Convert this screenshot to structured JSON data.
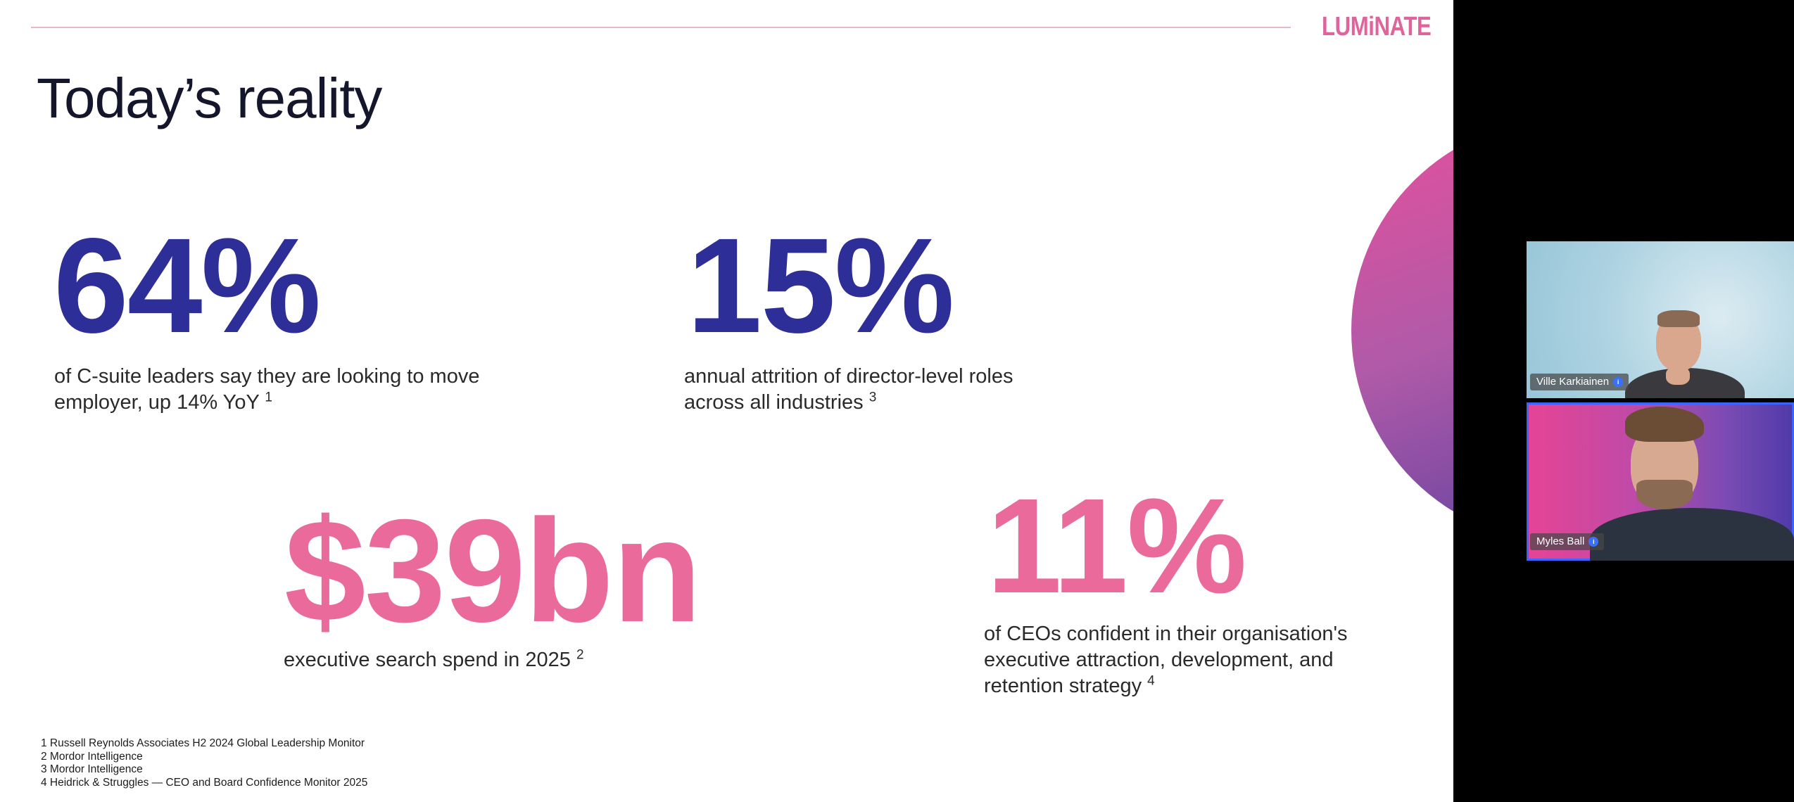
{
  "slide": {
    "logo": "LUMiNATE",
    "title": "Today’s reality",
    "stats": [
      {
        "value": "64%",
        "desc": "of C-suite leaders say they are looking to move employer, up 14% YoY",
        "ref": "1"
      },
      {
        "value": "15%",
        "desc": "annual attrition of director-level roles across all industries",
        "ref": "3"
      },
      {
        "value": "$39bn",
        "desc": "executive search spend in 2025",
        "ref": "2"
      },
      {
        "value": "11%",
        "desc": "of CEOs confident in their organisation's executive attraction, development, and retention strategy",
        "ref": "4"
      }
    ],
    "footnotes": [
      "1 Russell Reynolds Associates H2 2024 Global Leadership Monitor",
      "2 Mordor Intelligence",
      "3 Mordor Intelligence",
      "4 Heidrick & Struggles — CEO and Board Confidence Monitor 2025"
    ],
    "colors": {
      "accent_blue": "#2e2e98",
      "accent_pink": "#ea6a9b",
      "logo_pink": "#e0649b"
    }
  },
  "participants": [
    {
      "name": "Ville Karkiainen",
      "badge_icon": "info-icon"
    },
    {
      "name": "Myles Ball",
      "badge_icon": "info-icon",
      "speaking": true
    }
  ]
}
